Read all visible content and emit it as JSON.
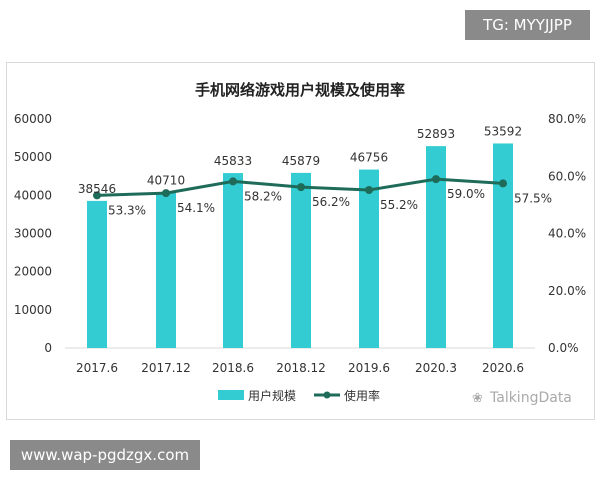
{
  "watermarks": {
    "top": "TG: MYYJJPP",
    "bottom": "www.wap-pgdzgx.com",
    "source": "TalkingData"
  },
  "colors": {
    "bar": "#33CCD3",
    "line": "#1F6B5A",
    "text": "#333333",
    "axis": "#d9d9d9"
  },
  "chart_data": {
    "type": "bar+line",
    "title": "手机网络游戏用户规模及使用率",
    "categories": [
      "2017.6",
      "2017.12",
      "2018.6",
      "2018.12",
      "2019.6",
      "2020.3",
      "2020.6"
    ],
    "series": [
      {
        "name": "用户规模",
        "type": "bar",
        "axis": "left",
        "values": [
          38546,
          40710,
          45833,
          45879,
          46756,
          52893,
          53592
        ],
        "labels": [
          "38546",
          "40710",
          "45833",
          "45879",
          "46756",
          "52893",
          "53592"
        ]
      },
      {
        "name": "使用率",
        "type": "line",
        "axis": "right",
        "values": [
          53.3,
          54.1,
          58.2,
          56.2,
          55.2,
          59.0,
          57.5
        ],
        "labels": [
          "53.3%",
          "54.1%",
          "58.2%",
          "56.2%",
          "55.2%",
          "59.0%",
          "57.5%"
        ]
      }
    ],
    "y_left": {
      "ylim": [
        0,
        60000
      ],
      "ticks": [
        "0",
        "10000",
        "20000",
        "30000",
        "40000",
        "50000",
        "60000"
      ]
    },
    "y_right": {
      "ylim": [
        0,
        80
      ],
      "ticks": [
        "0.0%",
        "20.0%",
        "40.0%",
        "60.0%",
        "80.0%"
      ]
    },
    "grid": false,
    "legend": "bottom"
  }
}
